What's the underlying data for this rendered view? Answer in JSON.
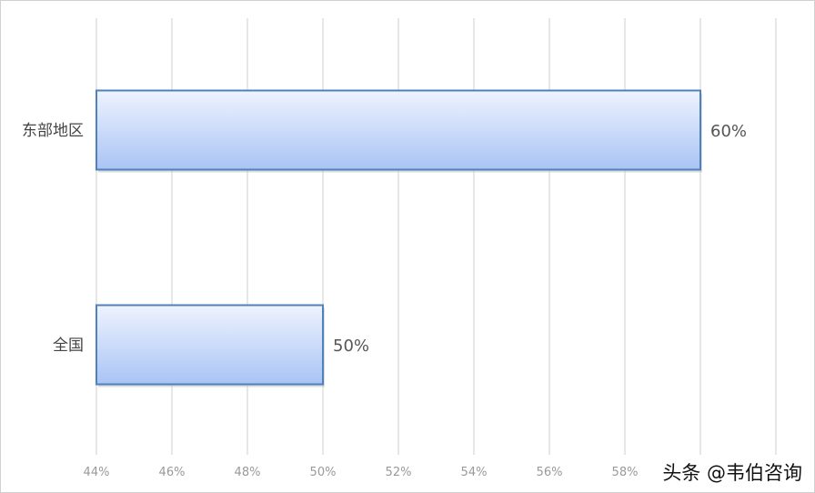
{
  "chart_data": {
    "type": "bar",
    "orientation": "horizontal",
    "categories": [
      "东部地区",
      "全国"
    ],
    "values": [
      60,
      50
    ],
    "data_labels": [
      "60%",
      "50%"
    ],
    "xlim": [
      44,
      62
    ],
    "x_ticks": [
      "44%",
      "46%",
      "48%",
      "50%",
      "52%",
      "54%",
      "56%",
      "58%"
    ],
    "x_tick_values": [
      44,
      46,
      48,
      50,
      52,
      54,
      56,
      58
    ],
    "grid": true,
    "bar_color": "#a9c4f5",
    "bar_border": "#4f81bd"
  },
  "watermark": "头条 @韦伯咨询"
}
